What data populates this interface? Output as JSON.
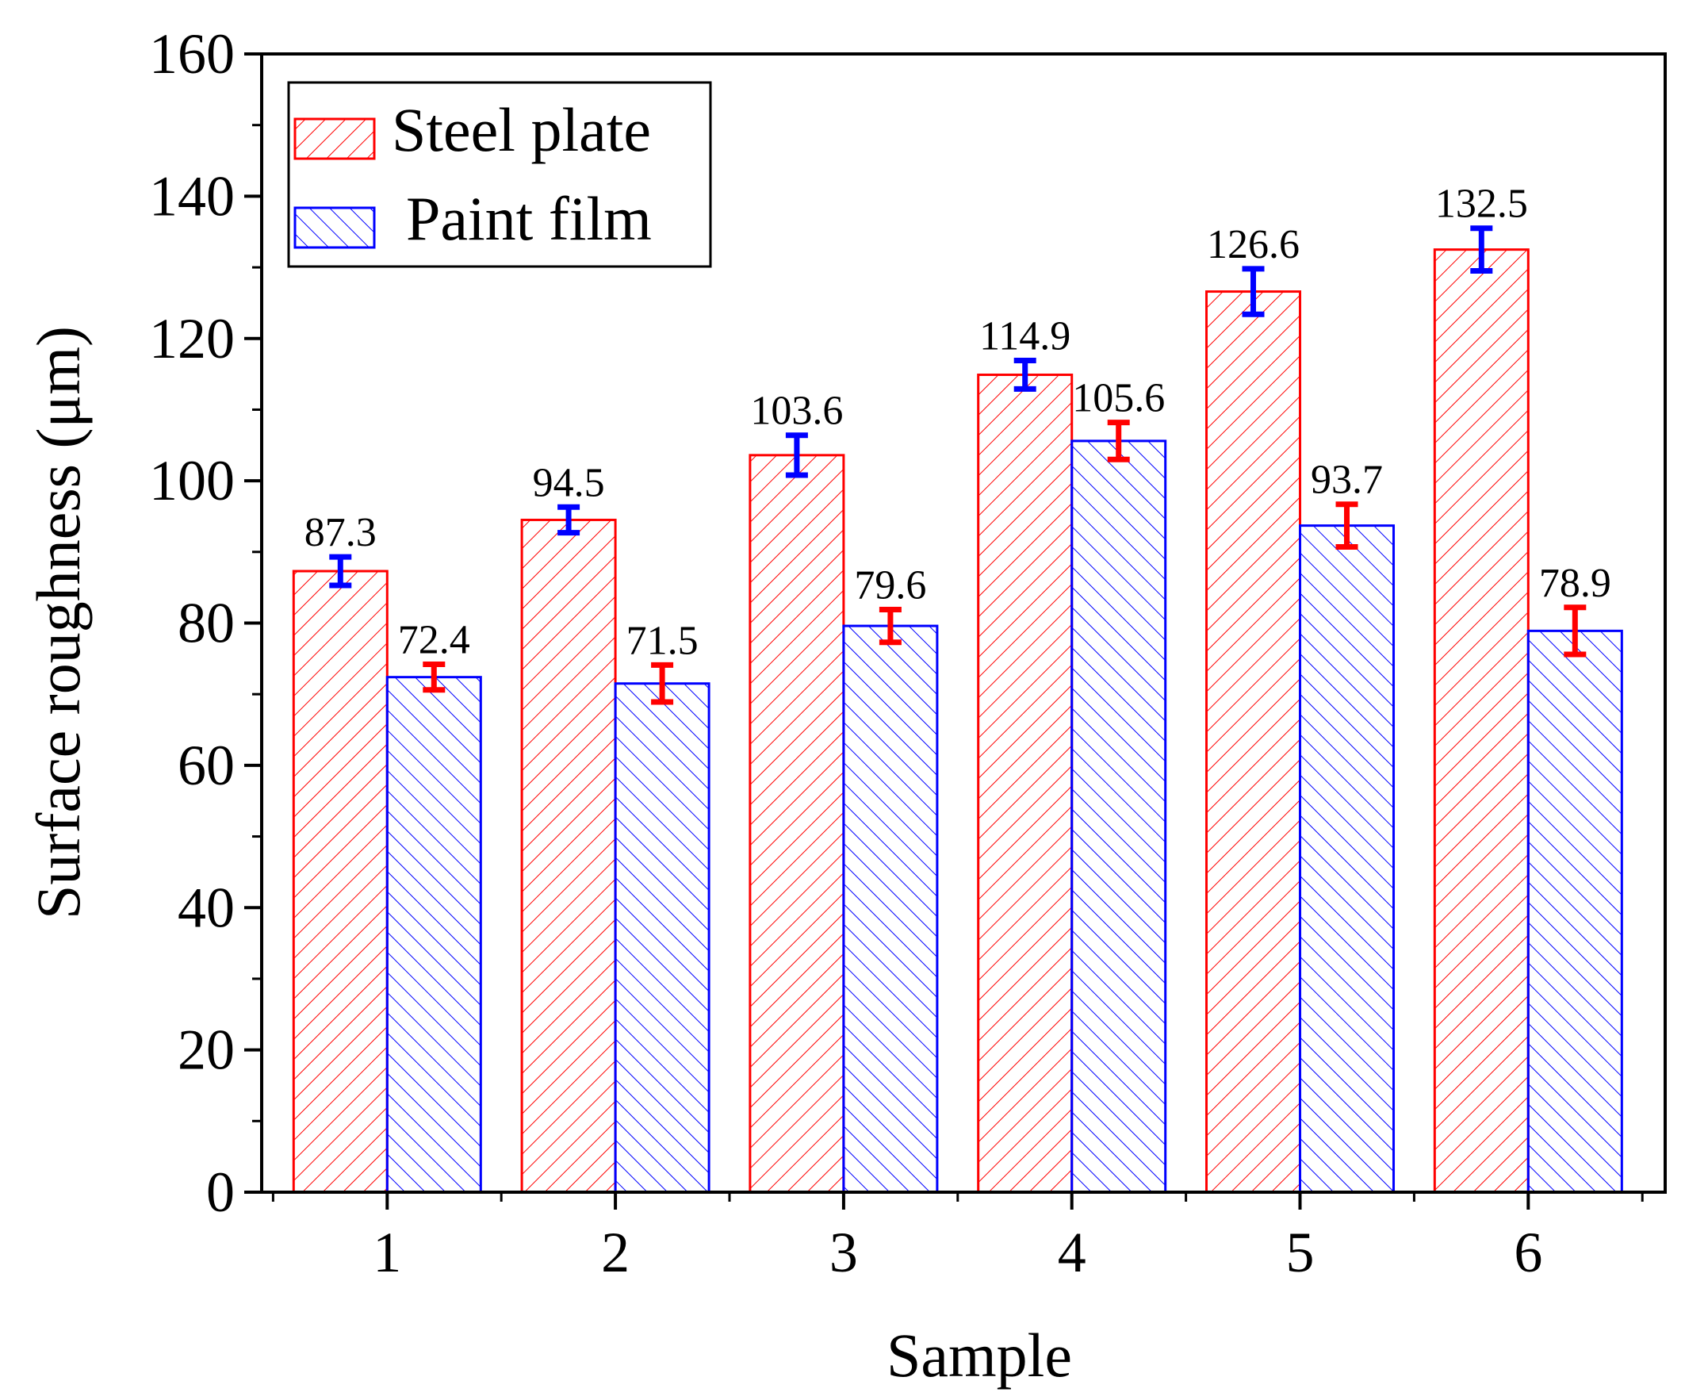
{
  "chart_data": {
    "type": "bar",
    "title": "",
    "xlabel": "Sample",
    "ylabel": "Surface roughness (μm)",
    "ylim": [
      0,
      160
    ],
    "yticks": [
      0,
      20,
      40,
      60,
      80,
      100,
      120,
      140,
      160
    ],
    "categories": [
      "1",
      "2",
      "3",
      "4",
      "5",
      "6"
    ],
    "legend_position": "top-left",
    "series": [
      {
        "name": "Steel plate",
        "color": "#ff0000",
        "error_color": "#0000ff",
        "values": [
          87.3,
          94.5,
          103.6,
          114.9,
          126.6,
          132.5
        ],
        "errors": [
          2.0,
          1.8,
          2.8,
          2.0,
          3.2,
          3.0
        ],
        "labels": [
          "87.3",
          "94.5",
          "103.6",
          "114.9",
          "126.6",
          "132.5"
        ]
      },
      {
        "name": "Paint film",
        "color": "#0000ff",
        "error_color": "#ff0000",
        "values": [
          72.4,
          71.5,
          79.6,
          105.6,
          93.7,
          78.9
        ],
        "errors": [
          1.8,
          2.6,
          2.3,
          2.6,
          3.0,
          3.3
        ],
        "labels": [
          "72.4",
          "71.5",
          "79.6",
          "105.6",
          "93.7",
          "78.9"
        ]
      }
    ]
  }
}
